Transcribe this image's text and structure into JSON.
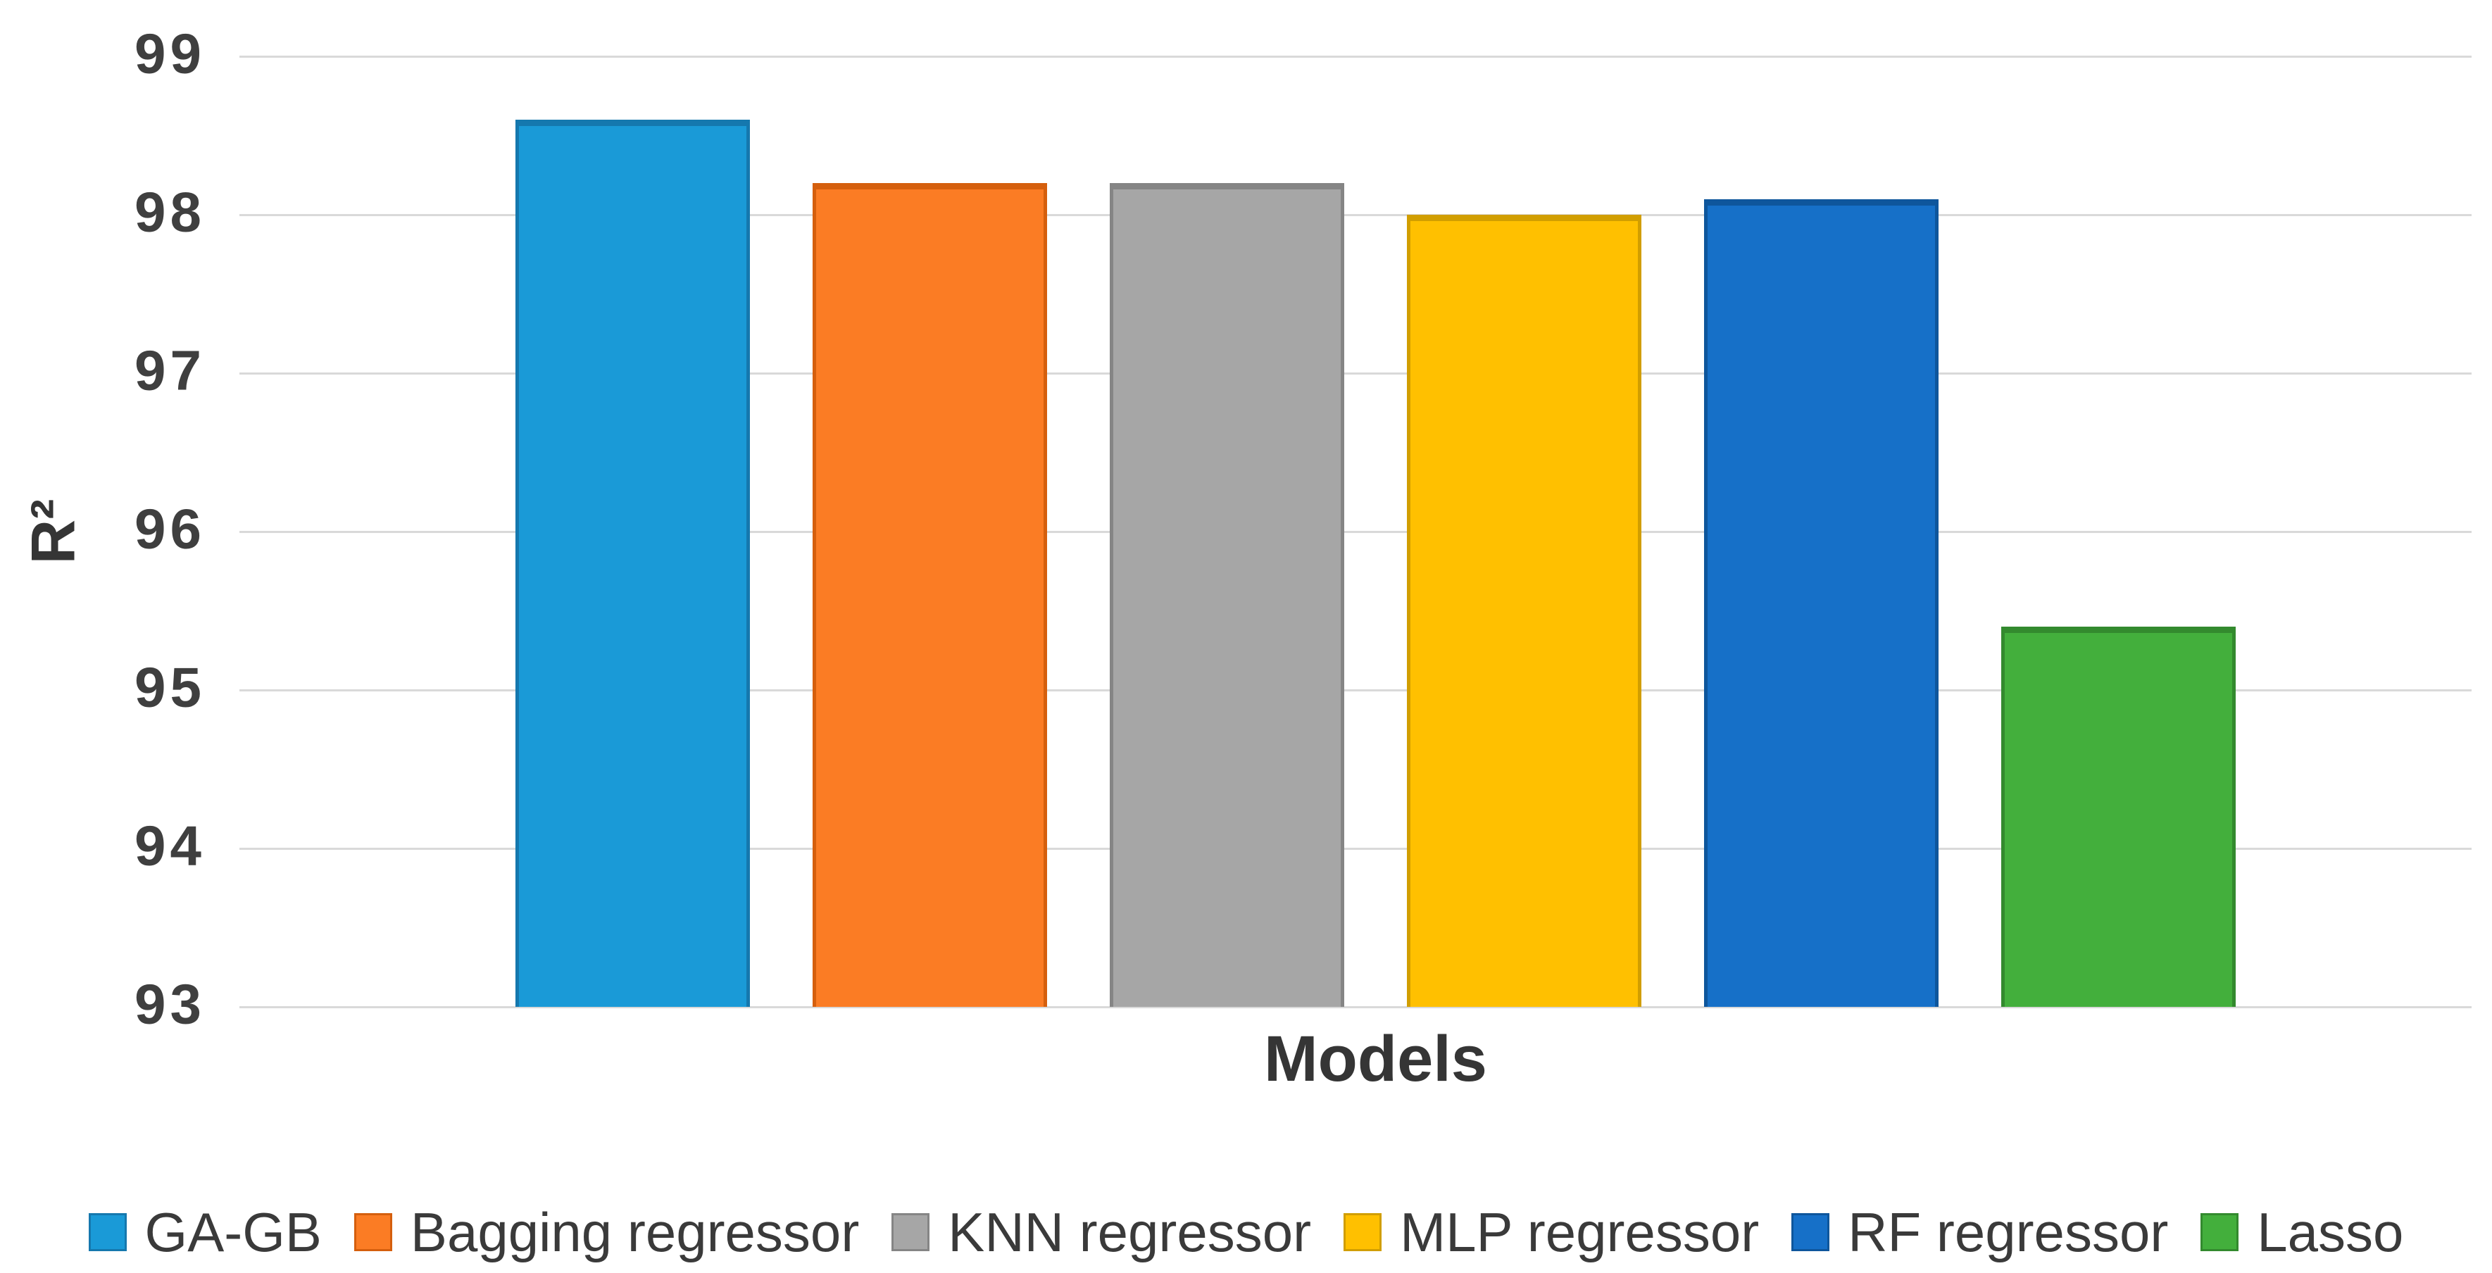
{
  "chart_data": {
    "type": "bar",
    "title": "",
    "xlabel": "Models",
    "ylabel": "R²",
    "ylim": [
      93,
      99
    ],
    "ytick_step": 1,
    "yticks": [
      99,
      98,
      97,
      96,
      95,
      94,
      93
    ],
    "grid": "horizontal",
    "gridline_color": "#d9d9d9",
    "legend_position": "bottom",
    "axis_text_color": "#3f3f3f",
    "series": [
      {
        "name": "GA-GB",
        "value": 98.6,
        "color": "#1a9ad7",
        "edge_color": "#1578ae"
      },
      {
        "name": "Bagging regressor",
        "value": 98.2,
        "color": "#fb7c24",
        "edge_color": "#d55f0d"
      },
      {
        "name": "KNN regressor",
        "value": 98.2,
        "color": "#a6a6a6",
        "edge_color": "#858585"
      },
      {
        "name": "MLP regressor",
        "value": 98.0,
        "color": "#ffc000",
        "edge_color": "#d19e00"
      },
      {
        "name": "RF regressor",
        "value": 98.1,
        "color": "#1670c8",
        "edge_color": "#0e569c"
      },
      {
        "name": "Lasso",
        "value": 95.4,
        "color": "#43af3c",
        "edge_color": "#338a2e"
      }
    ]
  }
}
